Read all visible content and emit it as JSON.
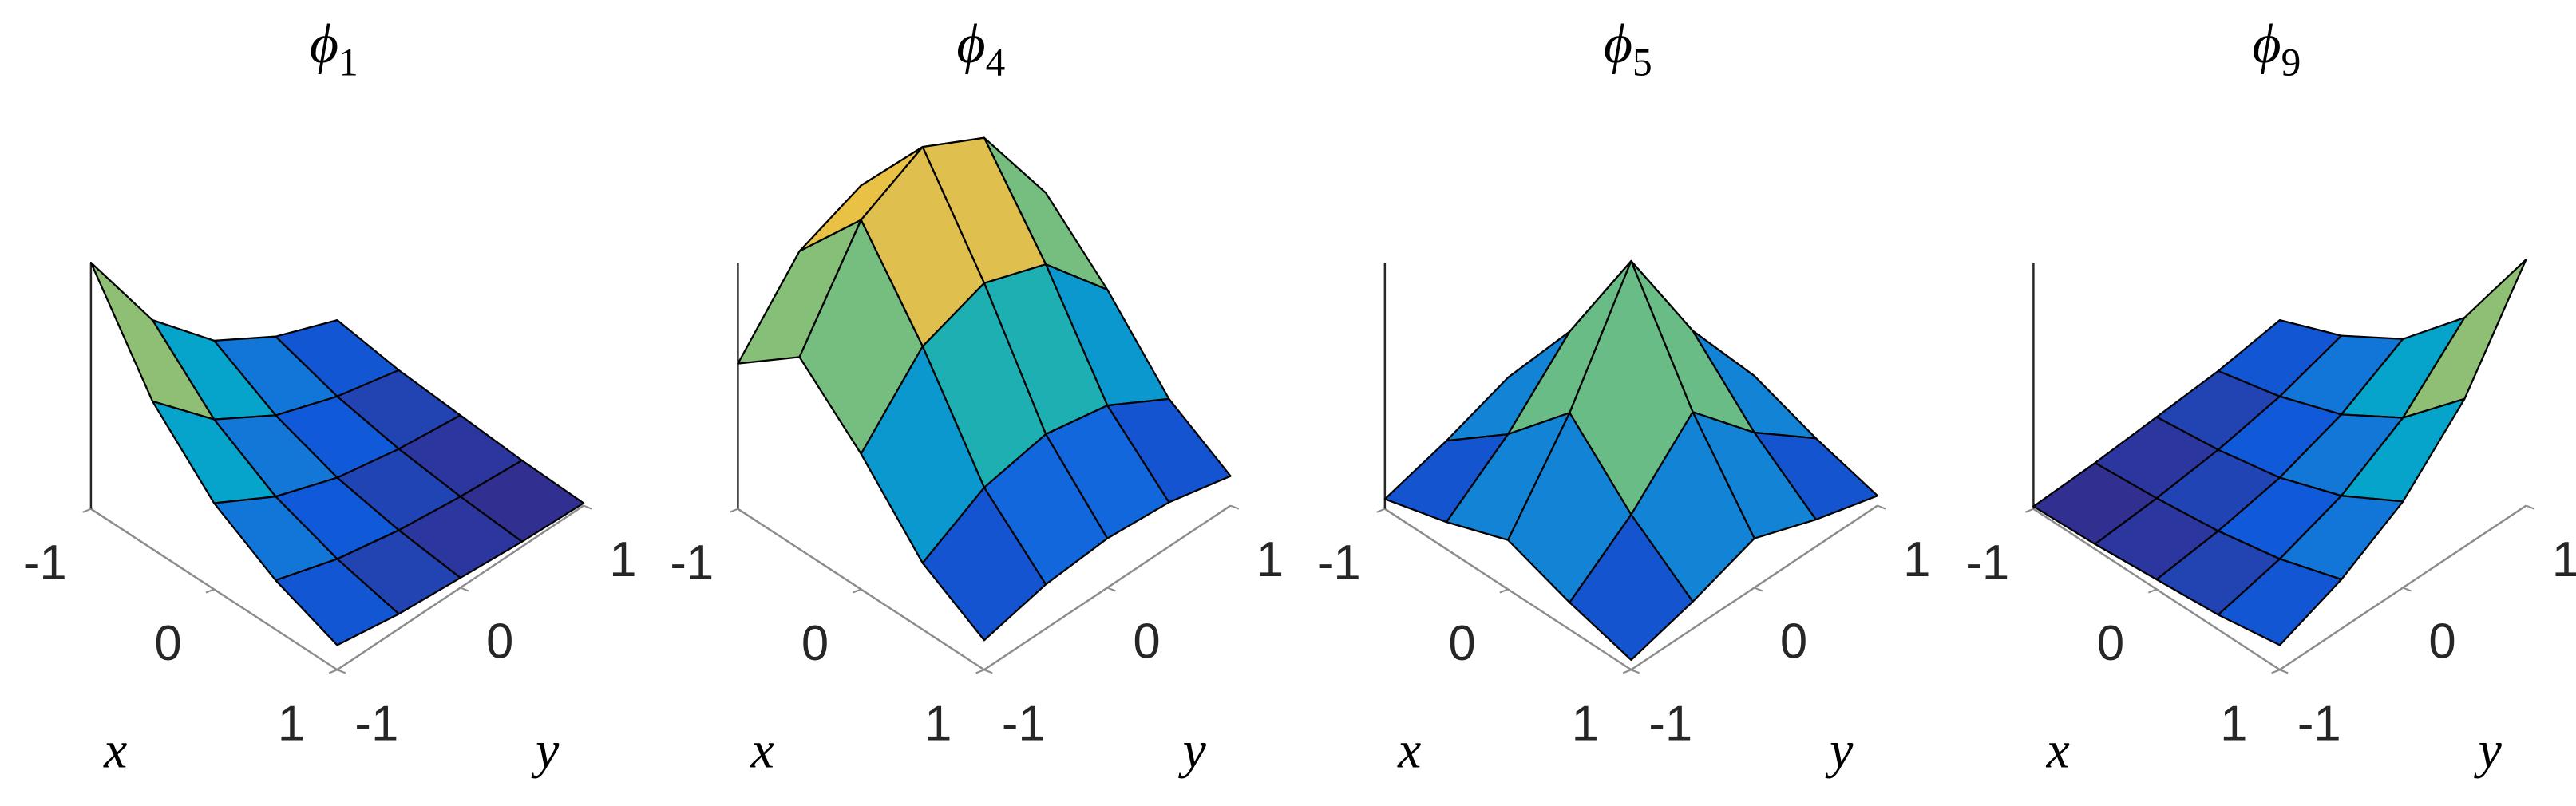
{
  "chart_data": [
    {
      "type": "surface",
      "title_symbol": "ϕ",
      "title_subscript": "1",
      "xlabel": "x",
      "ylabel": "y",
      "x": [
        -1,
        -0.5,
        0,
        0.5,
        1
      ],
      "y": [
        -1,
        -0.5,
        0,
        0.5,
        1
      ],
      "z": [
        [
          1,
          0.6,
          0.35,
          0.2,
          0.1
        ],
        [
          0.6,
          0.36,
          0.21,
          0.12,
          0.06
        ],
        [
          0.35,
          0.21,
          0.12,
          0.07,
          0.04
        ],
        [
          0.2,
          0.12,
          0.07,
          0.04,
          0.02
        ],
        [
          0.1,
          0.06,
          0.04,
          0.02,
          0.01
        ]
      ],
      "xlim": [
        -1,
        1
      ],
      "ylim": [
        -1,
        1
      ],
      "zlim": [
        0,
        1
      ],
      "xticks": [
        -1,
        0,
        1
      ],
      "yticks": [
        -1,
        0,
        1
      ],
      "colormap": "parula",
      "edgecolor": "#000000"
    },
    {
      "type": "surface",
      "title_symbol": "ϕ",
      "title_subscript": "4",
      "xlabel": "x",
      "ylabel": "y",
      "x": [
        -1,
        -0.5,
        0,
        0.5,
        1
      ],
      "y": [
        -1,
        -0.5,
        0,
        0.5,
        1
      ],
      "z": [
        [
          0.59,
          0.88,
          0.98,
          0.88,
          0.59
        ],
        [
          0.78,
          1.17,
          1.3,
          1.17,
          0.78
        ],
        [
          0.55,
          0.82,
          0.91,
          0.82,
          0.55
        ],
        [
          0.27,
          0.41,
          0.46,
          0.41,
          0.27
        ],
        [
          0.12,
          0.18,
          0.2,
          0.18,
          0.12
        ]
      ],
      "xlim": [
        -1,
        1
      ],
      "ylim": [
        -1,
        1
      ],
      "zlim": [
        0,
        1
      ],
      "xticks": [
        -1,
        0,
        1
      ],
      "yticks": [
        -1,
        0,
        1
      ],
      "colormap": "parula",
      "edgecolor": "#000000"
    },
    {
      "type": "surface",
      "title_symbol": "ϕ",
      "title_subscript": "5",
      "xlabel": "x",
      "ylabel": "y",
      "x": [
        -1,
        -0.5,
        0,
        0.5,
        1
      ],
      "y": [
        -1,
        -0.5,
        0,
        0.5,
        1
      ],
      "z": [
        [
          0.04,
          0.11,
          0.2,
          0.11,
          0.04
        ],
        [
          0.11,
          0.3,
          0.55,
          0.3,
          0.11
        ],
        [
          0.2,
          0.55,
          1,
          0.55,
          0.2
        ],
        [
          0.11,
          0.3,
          0.55,
          0.3,
          0.11
        ],
        [
          0.04,
          0.11,
          0.2,
          0.11,
          0.04
        ]
      ],
      "xlim": [
        -1,
        1
      ],
      "ylim": [
        -1,
        1
      ],
      "zlim": [
        0,
        1
      ],
      "xticks": [
        -1,
        0,
        1
      ],
      "yticks": [
        -1,
        0,
        1
      ],
      "colormap": "parula",
      "edgecolor": "#000000"
    },
    {
      "type": "surface",
      "title_symbol": "ϕ",
      "title_subscript": "9",
      "xlabel": "x",
      "ylabel": "y",
      "x": [
        -1,
        -0.5,
        0,
        0.5,
        1
      ],
      "y": [
        -1,
        -0.5,
        0,
        0.5,
        1
      ],
      "z": [
        [
          0.01,
          0.02,
          0.04,
          0.06,
          0.1
        ],
        [
          0.02,
          0.04,
          0.07,
          0.12,
          0.2
        ],
        [
          0.04,
          0.07,
          0.12,
          0.21,
          0.35
        ],
        [
          0.06,
          0.12,
          0.21,
          0.36,
          0.6
        ],
        [
          0.1,
          0.2,
          0.35,
          0.6,
          1
        ]
      ],
      "xlim": [
        -1,
        1
      ],
      "ylim": [
        -1,
        1
      ],
      "zlim": [
        0,
        1
      ],
      "xticks": [
        -1,
        0,
        1
      ],
      "yticks": [
        -1,
        0,
        1
      ],
      "colormap": "parula",
      "edgecolor": "#000000"
    }
  ]
}
